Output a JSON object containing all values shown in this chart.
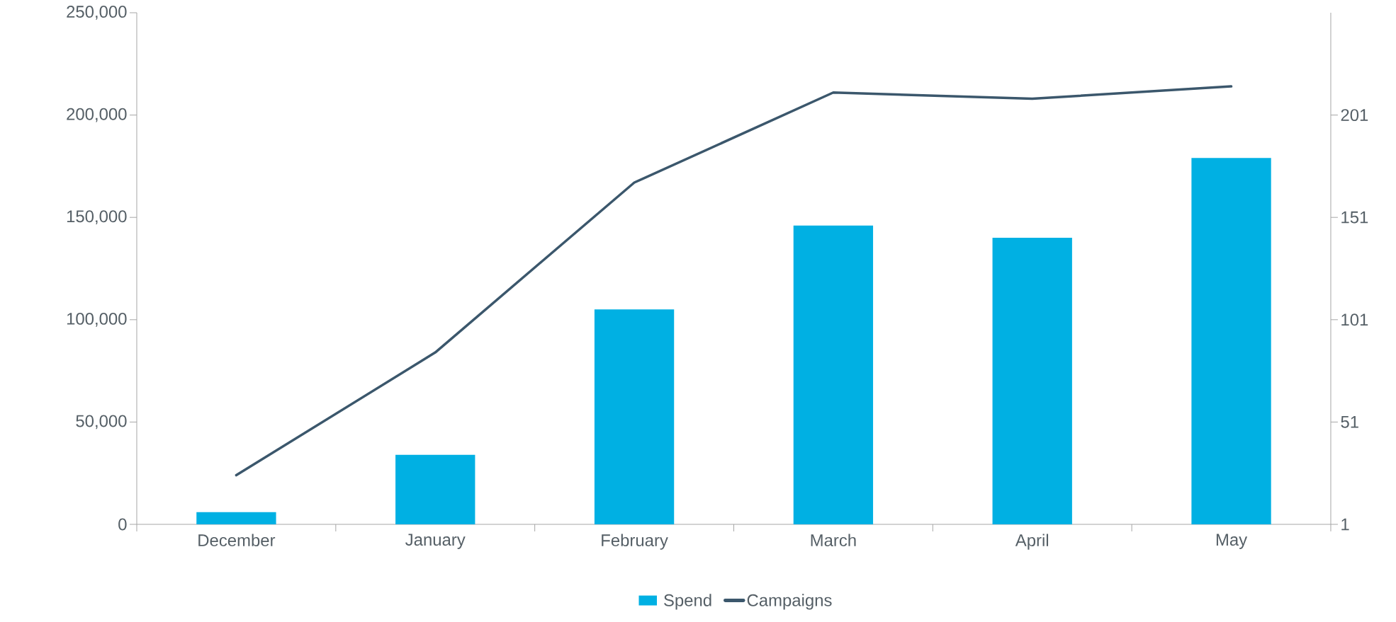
{
  "chart_data": {
    "type": "bar",
    "categories": [
      "December",
      "January",
      "February",
      "March",
      "April",
      "May"
    ],
    "series": [
      {
        "name": "Spend",
        "color": "#00b0e3",
        "values": [
          6000,
          34000,
          105000,
          146000,
          140000,
          179000
        ]
      },
      {
        "name": "Campaigns",
        "type": "line",
        "axis": "y2",
        "color": "#3b576c",
        "values": [
          25,
          85,
          168,
          212,
          209,
          215
        ]
      }
    ],
    "ylim": [
      0,
      250000
    ],
    "yticks": [
      {
        "value": 0,
        "label": "0"
      },
      {
        "value": 50000,
        "label": "50,000"
      },
      {
        "value": 100000,
        "label": "100,000"
      },
      {
        "value": 150000,
        "label": "150,000"
      },
      {
        "value": 200000,
        "label": "200,000"
      },
      {
        "value": 250000,
        "label": "250,000"
      }
    ],
    "y2lim": [
      1,
      251
    ],
    "y2ticks": [
      1,
      51,
      101,
      151,
      201
    ],
    "legend": "bottom"
  }
}
